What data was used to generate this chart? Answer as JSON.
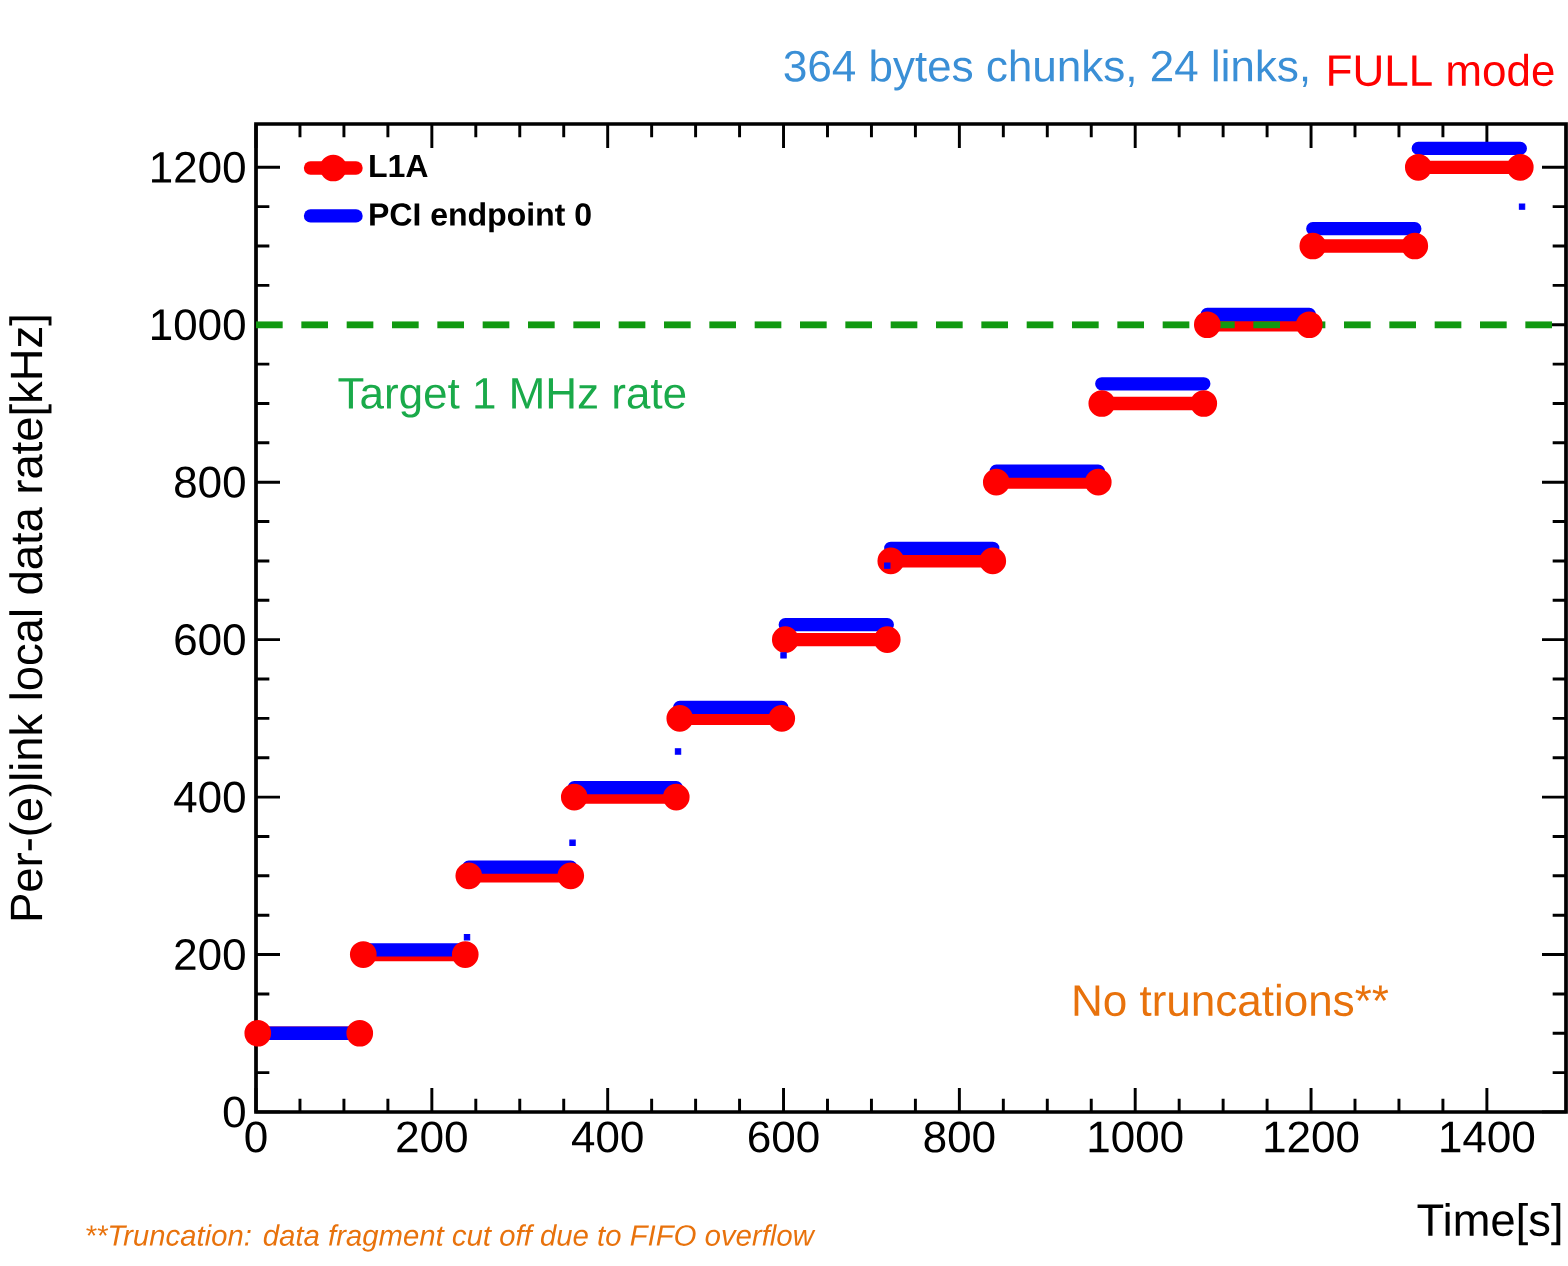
{
  "chart_data": {
    "type": "line",
    "title": "364 bytes chunks, 24 links,",
    "subtitle": "FULL mode",
    "xlabel": "Time[s]",
    "ylabel": "Per-(e)link local data rate[kHz]",
    "xlim": [
      0,
      1490
    ],
    "ylim": [
      0,
      1255
    ],
    "xticks": [
      0,
      200,
      400,
      600,
      800,
      1000,
      1200,
      1400
    ],
    "yticks": [
      0,
      200,
      400,
      600,
      800,
      1000,
      1200
    ],
    "grid": false,
    "legend": "top left",
    "series": [
      {
        "name": "L1A",
        "color": "#ff0000",
        "marker": "circle",
        "x": [
          2,
          118,
          120,
          122,
          238,
          240,
          242,
          358,
          360,
          362,
          478,
          480,
          482,
          598,
          600,
          602,
          718,
          720,
          722,
          838,
          840,
          842,
          958,
          960,
          962,
          1078,
          1080,
          1082,
          1198,
          1200,
          1202,
          1318,
          1320,
          1322,
          1438
        ],
        "values": [
          100,
          100,
          null,
          200,
          200,
          null,
          300,
          300,
          null,
          400,
          400,
          null,
          500,
          500,
          null,
          600,
          600,
          null,
          700,
          700,
          null,
          800,
          800,
          null,
          900,
          900,
          null,
          1000,
          1000,
          null,
          1100,
          1100,
          null,
          1200,
          1200
        ]
      },
      {
        "name": "PCI endpoint 0",
        "color": "#0000ff",
        "marker": "none",
        "x": [
          2,
          118,
          120,
          122,
          238,
          240,
          242,
          358,
          360,
          362,
          478,
          480,
          482,
          598,
          600,
          602,
          718,
          720,
          722,
          838,
          840,
          842,
          958,
          960,
          962,
          1078,
          1080,
          1082,
          1198,
          1200,
          1202,
          1318,
          1320,
          1322,
          1438
        ],
        "values": [
          100,
          100,
          null,
          206,
          206,
          null,
          311,
          311,
          null,
          412,
          412,
          null,
          514,
          514,
          null,
          619,
          619,
          null,
          716,
          716,
          null,
          814,
          814,
          null,
          925,
          925,
          null,
          1013,
          1013,
          null,
          1122,
          1122,
          null,
          1224,
          1224
        ]
      },
      {
        "type": "scatter",
        "color": "#0000ff",
        "marker": "square",
        "x": [
          240,
          360,
          480,
          600,
          718,
          1440
        ],
        "values": [
          222,
          342,
          458,
          580,
          694,
          1150
        ]
      }
    ],
    "ref_lines": [
      {
        "axis": "y",
        "value": 1000,
        "label": "Target 1 MHz rate",
        "color": "#119911",
        "line_style": "dashed"
      }
    ],
    "annotations": [
      "No truncations**",
      "**Truncation: data fragment cut off due to FIFO overflow"
    ]
  }
}
